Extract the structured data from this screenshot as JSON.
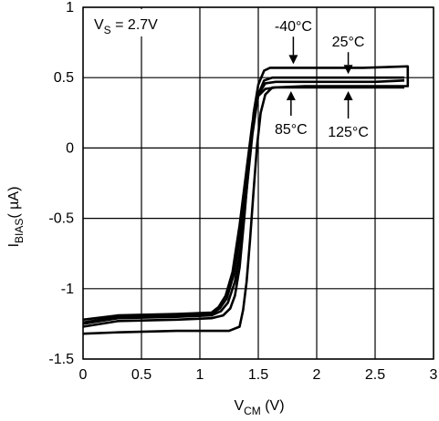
{
  "chart_data": {
    "type": "line",
    "title": "",
    "conditions": {
      "prefix": "V",
      "sub": "S",
      "suffix": " = 2.7V"
    },
    "xlabel": {
      "main": "V",
      "sub": "CM",
      "unit": " (V)"
    },
    "ylabel": {
      "main": "I",
      "sub": "BIAS",
      "unit": "( µA)"
    },
    "xlim": [
      0,
      3
    ],
    "ylim": [
      -1.5,
      1
    ],
    "x_ticks": [
      0,
      0.5,
      1,
      1.5,
      2,
      2.5,
      3
    ],
    "x_tick_labels": [
      "0",
      "0.5",
      "1",
      "1.5",
      "2",
      "2.5",
      "3"
    ],
    "y_ticks": [
      1,
      0.5,
      0,
      -0.5,
      -1,
      -1.5
    ],
    "y_tick_labels": [
      "1",
      "0.5",
      "0",
      "-0.5",
      "-1",
      "-1.5"
    ],
    "grid": true,
    "legend": "none",
    "series": [
      {
        "name": "-40°C",
        "points": [
          [
            0,
            -1.27
          ],
          [
            0.3,
            -1.23
          ],
          [
            0.8,
            -1.22
          ],
          [
            1.1,
            -1.21
          ],
          [
            1.2,
            -1.19
          ],
          [
            1.26,
            -1.14
          ],
          [
            1.3,
            -1.05
          ],
          [
            1.34,
            -0.85
          ],
          [
            1.38,
            -0.5
          ],
          [
            1.42,
            -0.1
          ],
          [
            1.46,
            0.25
          ],
          [
            1.5,
            0.45
          ],
          [
            1.55,
            0.55
          ],
          [
            1.6,
            0.57
          ],
          [
            1.9,
            0.57
          ],
          [
            2.4,
            0.57
          ],
          [
            2.78,
            0.58
          ],
          [
            2.78,
            0.44
          ],
          [
            2.4,
            0.44
          ],
          [
            1.9,
            0.44
          ],
          [
            1.62,
            0.43
          ],
          [
            1.56,
            0.38
          ],
          [
            1.52,
            0.25
          ],
          [
            1.49,
            0.02
          ],
          [
            1.46,
            -0.3
          ],
          [
            1.43,
            -0.65
          ],
          [
            1.4,
            -0.95
          ],
          [
            1.37,
            -1.15
          ],
          [
            1.34,
            -1.27
          ],
          [
            1.25,
            -1.3
          ],
          [
            0.8,
            -1.3
          ],
          [
            0.3,
            -1.31
          ],
          [
            0,
            -1.32
          ]
        ]
      },
      {
        "name": "25°C",
        "points": [
          [
            0,
            -1.25
          ],
          [
            0.3,
            -1.21
          ],
          [
            0.8,
            -1.2
          ],
          [
            1.1,
            -1.19
          ],
          [
            1.18,
            -1.16
          ],
          [
            1.24,
            -1.1
          ],
          [
            1.3,
            -0.95
          ],
          [
            1.35,
            -0.7
          ],
          [
            1.4,
            -0.3
          ],
          [
            1.45,
            0.1
          ],
          [
            1.5,
            0.38
          ],
          [
            1.55,
            0.48
          ],
          [
            1.62,
            0.5
          ],
          [
            2,
            0.5
          ],
          [
            2.5,
            0.5
          ],
          [
            2.75,
            0.5
          ]
        ]
      },
      {
        "name": "85°C",
        "points": [
          [
            0,
            -1.24
          ],
          [
            0.3,
            -1.2
          ],
          [
            0.8,
            -1.19
          ],
          [
            1.1,
            -1.18
          ],
          [
            1.17,
            -1.14
          ],
          [
            1.23,
            -1.07
          ],
          [
            1.29,
            -0.9
          ],
          [
            1.35,
            -0.6
          ],
          [
            1.4,
            -0.2
          ],
          [
            1.45,
            0.15
          ],
          [
            1.5,
            0.38
          ],
          [
            1.56,
            0.46
          ],
          [
            1.65,
            0.47
          ],
          [
            2,
            0.47
          ],
          [
            2.5,
            0.47
          ],
          [
            2.75,
            0.48
          ]
        ]
      },
      {
        "name": "125°C",
        "points": [
          [
            0,
            -1.22
          ],
          [
            0.3,
            -1.19
          ],
          [
            0.8,
            -1.18
          ],
          [
            1.1,
            -1.17
          ],
          [
            1.16,
            -1.13
          ],
          [
            1.22,
            -1.05
          ],
          [
            1.28,
            -0.88
          ],
          [
            1.34,
            -0.55
          ],
          [
            1.4,
            -0.15
          ],
          [
            1.45,
            0.18
          ],
          [
            1.5,
            0.37
          ],
          [
            1.56,
            0.42
          ],
          [
            1.65,
            0.43
          ],
          [
            2,
            0.43
          ],
          [
            2.5,
            0.43
          ],
          [
            2.75,
            0.43
          ]
        ]
      }
    ],
    "annotations": [
      {
        "text": "-40°C",
        "target": [
          1.8,
          0.57
        ],
        "label_at": [
          1.8,
          0.83
        ],
        "direction": "down"
      },
      {
        "text": "25°C",
        "target": [
          2.27,
          0.5
        ],
        "label_at": [
          2.27,
          0.72
        ],
        "direction": "down"
      },
      {
        "text": "85°C",
        "target": [
          1.78,
          0.43
        ],
        "label_at": [
          1.78,
          0.1
        ],
        "direction": "up"
      },
      {
        "text": "125°C",
        "target": [
          2.27,
          0.43
        ],
        "label_at": [
          2.27,
          0.08
        ],
        "direction": "up"
      }
    ],
    "colors": {
      "line": "#000000",
      "grid": "#000000",
      "background": "#ffffff"
    }
  }
}
